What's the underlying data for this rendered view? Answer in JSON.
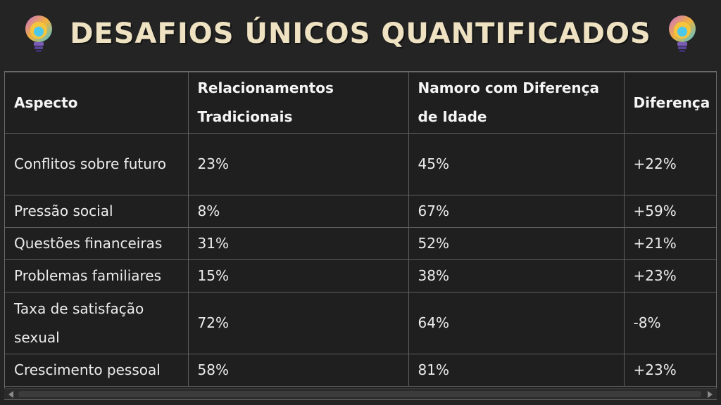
{
  "title": "DESAFIOS ÚNICOS QUANTIFICADOS",
  "icons": {
    "left": "light-bulb-icon",
    "right": "light-bulb-icon"
  },
  "colors": {
    "background": "#242424",
    "title": "#efe2c2",
    "text": "#ececec",
    "border": "#5e5e5e"
  },
  "table": {
    "headers": [
      "Aspecto",
      "Relacionamentos Tradicionais",
      "Namoro com Diferença de Idade",
      "Diferença"
    ],
    "rows": [
      [
        "Conflitos sobre futuro",
        "23%",
        "45%",
        "+22%"
      ],
      [
        "Pressão social",
        "8%",
        "67%",
        "+59%"
      ],
      [
        "Questões financeiras",
        "31%",
        "52%",
        "+21%"
      ],
      [
        "Problemas familiares",
        "15%",
        "38%",
        "+23%"
      ],
      [
        "Taxa de satisfação sexual",
        "72%",
        "64%",
        "-8%"
      ],
      [
        "Crescimento pessoal",
        "58%",
        "81%",
        "+23%"
      ]
    ]
  }
}
